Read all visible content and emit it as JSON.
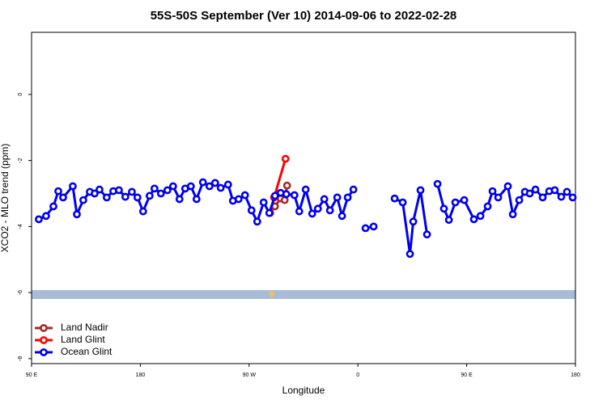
{
  "chart_data": {
    "type": "line",
    "title": "55S-50S September (Ver 10)   2014-09-06 to 2022-02-28",
    "xlabel": "Longitude",
    "ylabel": "XCO2 - MLO trend (ppm)",
    "xlim": [
      90,
      540
    ],
    "xticks": [
      {
        "value": 90,
        "label": "90 E"
      },
      {
        "value": 180,
        "label": "180"
      },
      {
        "value": 270,
        "label": "90 W"
      },
      {
        "value": 360,
        "label": "0"
      },
      {
        "value": 450,
        "label": "90 E"
      },
      {
        "value": 540,
        "label": "180"
      }
    ],
    "ylim": [
      -8.15,
      1.88
    ],
    "yticks": [
      0,
      -2,
      -4,
      -6,
      -8
    ],
    "legend": "bottom-left",
    "series": [
      {
        "name": "Land Nadir",
        "color": "#a52a2a",
        "x": [
          287.4,
          291.4,
          296.1,
          299.4,
          301.4
        ],
        "values": [
          -3.59,
          -3.39,
          -3.15,
          -3.2,
          -2.76
        ]
      },
      {
        "name": "Land Glint",
        "color": "#ff0000",
        "x": [
          290.7,
          300.1
        ],
        "values": [
          -3.12,
          -1.95
        ]
      },
      {
        "name": "Ocean Glint",
        "color": "#0000ee",
        "x": [
          96.0,
          102.0,
          108.1,
          112.1,
          116.1,
          124.1,
          127.5,
          132.8,
          138.2,
          142.2,
          146.2,
          152.2,
          157.6,
          162.3,
          167.6,
          173.0,
          177.6,
          182.3,
          187.7,
          191.7,
          197.0,
          202.4,
          207.1,
          212.4,
          217.1,
          221.8,
          226.5,
          231.8,
          237.2,
          241.9,
          246.5,
          252.6,
          256.6,
          261.3,
          266.6,
          272.0,
          276.7,
          282.0,
          286.7,
          291.4,
          296.1,
          300.8,
          307.5,
          311.5,
          316.8,
          322.2,
          326.9,
          332.2,
          336.9,
          342.9,
          346.9,
          351.6,
          356.3,
          null,
          366.3,
          373.0,
          null,
          390.4,
          397.1,
          403.1,
          405.8,
          411.8,
          417.2,
          null,
          425.9,
          431.2,
          435.3,
          440.6,
          448.0,
          456.0,
          461.4,
          467.4,
          471.4,
          476.1,
          484.1,
          488.2,
          493.5,
          498.2,
          502.2,
          506.9,
          512.9,
          518.3,
          522.9,
          528.3,
          533.0,
          537.7
        ],
        "values": [
          -3.78,
          -3.68,
          -3.39,
          -2.93,
          -3.12,
          -2.78,
          -3.63,
          -3.2,
          -2.95,
          -3.0,
          -2.88,
          -3.12,
          -2.93,
          -2.9,
          -3.1,
          -2.95,
          -3.12,
          -3.54,
          -3.07,
          -2.85,
          -3.0,
          -2.9,
          -2.78,
          -3.17,
          -2.85,
          -2.78,
          -3.17,
          -2.66,
          -2.78,
          -2.68,
          -2.83,
          -2.73,
          -3.22,
          -3.17,
          -3.05,
          -3.51,
          -3.85,
          -3.27,
          -3.59,
          -3.07,
          -2.98,
          -3.02,
          -3.05,
          -3.54,
          -2.88,
          -3.61,
          -3.46,
          -3.17,
          -3.51,
          -3.12,
          -3.68,
          -3.12,
          -2.88,
          null,
          -4.05,
          -4.0,
          null,
          -3.15,
          -3.27,
          -4.83,
          -3.85,
          -2.9,
          -4.24,
          null,
          -2.71,
          -3.46,
          -3.8,
          -3.27,
          -3.2,
          -3.78,
          -3.68,
          -3.39,
          -2.93,
          -3.12,
          -2.78,
          -3.63,
          -3.2,
          -2.95,
          -3.0,
          -2.88,
          -3.12,
          -2.93,
          -2.9,
          -3.1,
          -2.95,
          -3.12
        ]
      }
    ]
  }
}
